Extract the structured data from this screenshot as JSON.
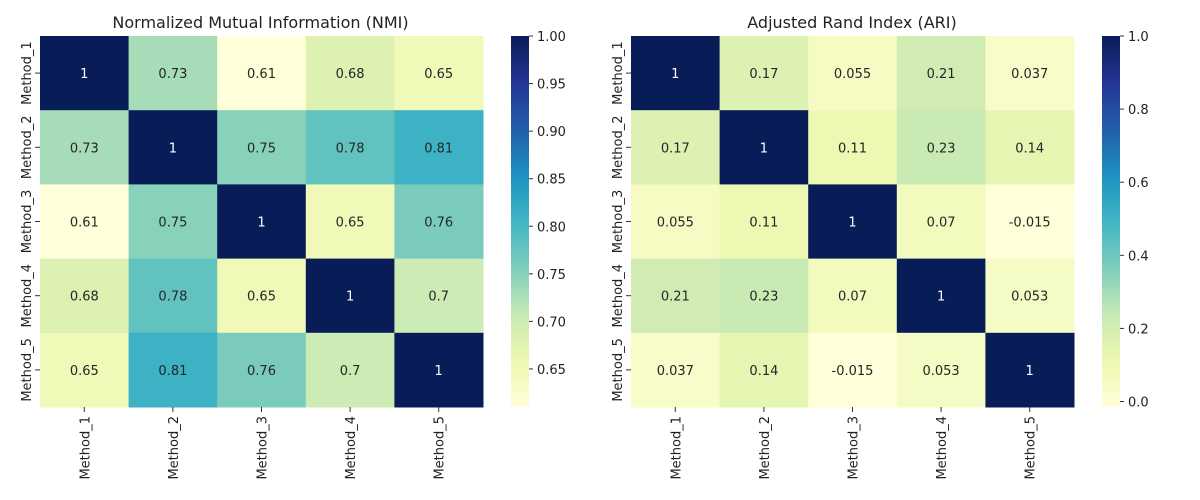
{
  "chart_data": [
    {
      "type": "heatmap",
      "title": "Normalized Mutual Information (NMI)",
      "x_labels": [
        "Method_1",
        "Method_2",
        "Method_3",
        "Method_4",
        "Method_5"
      ],
      "y_labels": [
        "Method_1",
        "Method_2",
        "Method_3",
        "Method_4",
        "Method_5"
      ],
      "values": [
        [
          1,
          0.73,
          0.61,
          0.68,
          0.65
        ],
        [
          0.73,
          1,
          0.75,
          0.78,
          0.81
        ],
        [
          0.61,
          0.75,
          1,
          0.65,
          0.76
        ],
        [
          0.68,
          0.78,
          0.65,
          1,
          0.7
        ],
        [
          0.65,
          0.81,
          0.76,
          0.7,
          1
        ]
      ],
      "value_labels": [
        [
          "1",
          "0.73",
          "0.61",
          "0.68",
          "0.65"
        ],
        [
          "0.73",
          "1",
          "0.75",
          "0.78",
          "0.81"
        ],
        [
          "0.61",
          "0.75",
          "1",
          "0.65",
          "0.76"
        ],
        [
          "0.68",
          "0.78",
          "0.65",
          "1",
          "0.7"
        ],
        [
          "0.65",
          "0.81",
          "0.76",
          "0.7",
          "1"
        ]
      ],
      "colormap": "YlGnBu",
      "vmin": 0.61,
      "vmax": 1.0,
      "colorbar_ticks": [
        0.65,
        0.7,
        0.75,
        0.8,
        0.85,
        0.9,
        0.95,
        1.0
      ],
      "colorbar_tick_labels": [
        "0.65",
        "0.70",
        "0.75",
        "0.80",
        "0.85",
        "0.90",
        "0.95",
        "1.00"
      ]
    },
    {
      "type": "heatmap",
      "title": "Adjusted Rand Index (ARI)",
      "x_labels": [
        "Method_1",
        "Method_2",
        "Method_3",
        "Method_4",
        "Method_5"
      ],
      "y_labels": [
        "Method_1",
        "Method_2",
        "Method_3",
        "Method_4",
        "Method_5"
      ],
      "values": [
        [
          1,
          0.17,
          0.055,
          0.21,
          0.037
        ],
        [
          0.17,
          1,
          0.11,
          0.23,
          0.14
        ],
        [
          0.055,
          0.11,
          1,
          0.07,
          -0.015
        ],
        [
          0.21,
          0.23,
          0.07,
          1,
          0.053
        ],
        [
          0.037,
          0.14,
          -0.015,
          0.053,
          1
        ]
      ],
      "value_labels": [
        [
          "1",
          "0.17",
          "0.055",
          "0.21",
          "0.037"
        ],
        [
          "0.17",
          "1",
          "0.11",
          "0.23",
          "0.14"
        ],
        [
          "0.055",
          "0.11",
          "1",
          "0.07",
          "-0.015"
        ],
        [
          "0.21",
          "0.23",
          "0.07",
          "1",
          "0.053"
        ],
        [
          "0.037",
          "0.14",
          "-0.015",
          "0.053",
          "1"
        ]
      ],
      "colormap": "YlGnBu",
      "vmin": -0.015,
      "vmax": 1.0,
      "colorbar_ticks": [
        0.0,
        0.2,
        0.4,
        0.6,
        0.8,
        1.0
      ],
      "colorbar_tick_labels": [
        "0.0",
        "0.2",
        "0.4",
        "0.6",
        "0.8",
        "1.0"
      ]
    }
  ]
}
